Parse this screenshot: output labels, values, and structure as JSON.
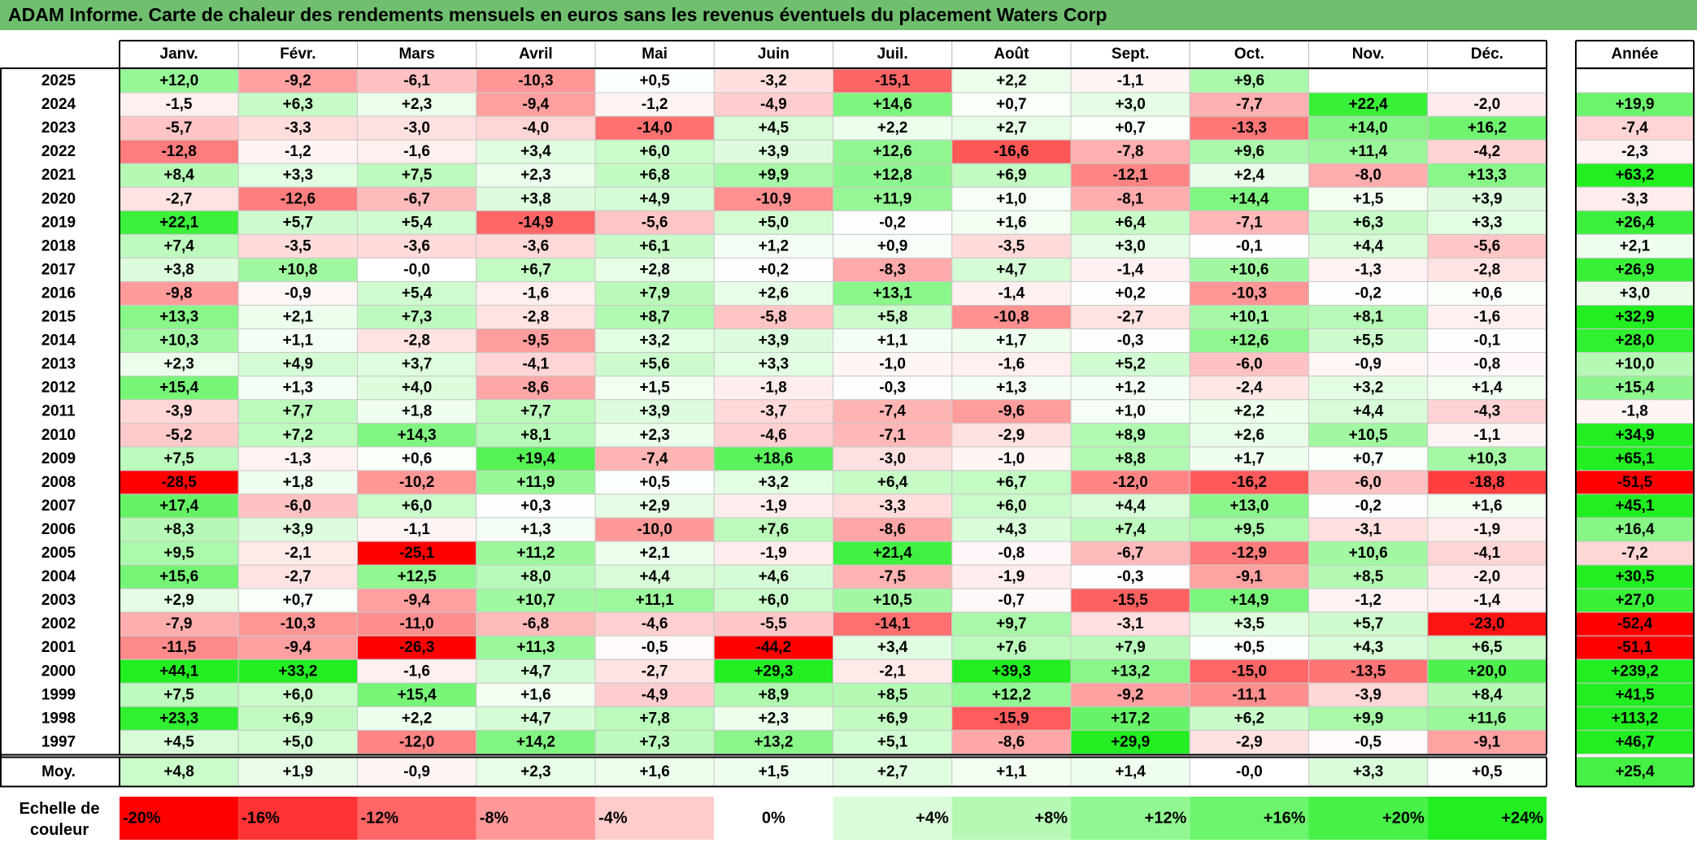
{
  "title": "ADAM Informe. Carte de chaleur des rendements mensuels en euros sans les revenus éventuels du placement Waters Corp",
  "chart_data": {
    "type": "heatmap",
    "months": [
      "Janv.",
      "Févr.",
      "Mars",
      "Avril",
      "Mai",
      "Juin",
      "Juil.",
      "Août",
      "Sept.",
      "Oct.",
      "Nov.",
      "Déc."
    ],
    "year_header": "Année",
    "rows": [
      {
        "year": "2025",
        "values": [
          12.0,
          -9.2,
          -6.1,
          -10.3,
          0.5,
          -3.2,
          -15.1,
          2.2,
          -1.1,
          9.6,
          null,
          null
        ],
        "annual": null
      },
      {
        "year": "2024",
        "values": [
          -1.5,
          6.3,
          2.3,
          -9.4,
          -1.2,
          -4.9,
          14.6,
          0.7,
          3.0,
          -7.7,
          22.4,
          -2.0
        ],
        "annual": 19.9
      },
      {
        "year": "2023",
        "values": [
          -5.7,
          -3.3,
          -3.0,
          -4.0,
          -14.0,
          4.5,
          2.2,
          2.7,
          0.7,
          -13.3,
          14.0,
          16.2
        ],
        "annual": -7.4
      },
      {
        "year": "2022",
        "values": [
          -12.8,
          -1.2,
          -1.6,
          3.4,
          6.0,
          3.9,
          12.6,
          -16.6,
          -7.8,
          9.6,
          11.4,
          -4.2
        ],
        "annual": -2.3
      },
      {
        "year": "2021",
        "values": [
          8.4,
          3.3,
          7.5,
          2.3,
          6.8,
          9.9,
          12.8,
          6.9,
          -12.1,
          2.4,
          -8.0,
          13.3
        ],
        "annual": 63.2
      },
      {
        "year": "2020",
        "values": [
          -2.7,
          -12.6,
          -6.7,
          3.8,
          4.9,
          -10.9,
          11.9,
          1.0,
          -8.1,
          14.4,
          1.5,
          3.9
        ],
        "annual": -3.3
      },
      {
        "year": "2019",
        "values": [
          22.1,
          5.7,
          5.4,
          -14.9,
          -5.6,
          5.0,
          -0.2,
          1.6,
          6.4,
          -7.1,
          6.3,
          3.3
        ],
        "annual": 26.4
      },
      {
        "year": "2018",
        "values": [
          7.4,
          -3.5,
          -3.6,
          -3.6,
          6.1,
          1.2,
          0.9,
          -3.5,
          3.0,
          -0.1,
          4.4,
          -5.6
        ],
        "annual": 2.1
      },
      {
        "year": "2017",
        "values": [
          3.8,
          10.8,
          -0.0,
          6.7,
          2.8,
          0.2,
          -8.3,
          4.7,
          -1.4,
          10.6,
          -1.3,
          -2.8
        ],
        "annual": 26.9
      },
      {
        "year": "2016",
        "values": [
          -9.8,
          -0.9,
          5.4,
          -1.6,
          7.9,
          2.6,
          13.1,
          -1.4,
          0.2,
          -10.3,
          -0.2,
          0.6
        ],
        "annual": 3.0
      },
      {
        "year": "2015",
        "values": [
          13.3,
          2.1,
          7.3,
          -2.8,
          8.7,
          -5.8,
          5.8,
          -10.8,
          -2.7,
          10.1,
          8.1,
          -1.6
        ],
        "annual": 32.9
      },
      {
        "year": "2014",
        "values": [
          10.3,
          1.1,
          -2.8,
          -9.5,
          3.2,
          3.9,
          1.1,
          1.7,
          -0.3,
          12.6,
          5.5,
          -0.1
        ],
        "annual": 28.0
      },
      {
        "year": "2013",
        "values": [
          2.3,
          4.9,
          3.7,
          -4.1,
          5.6,
          3.3,
          -1.0,
          -1.6,
          5.2,
          -6.0,
          -0.9,
          -0.8
        ],
        "annual": 10.0
      },
      {
        "year": "2012",
        "values": [
          15.4,
          1.3,
          4.0,
          -8.6,
          1.5,
          -1.8,
          -0.3,
          1.3,
          1.2,
          -2.4,
          3.2,
          1.4
        ],
        "annual": 15.4
      },
      {
        "year": "2011",
        "values": [
          -3.9,
          7.7,
          1.8,
          7.7,
          3.9,
          -3.7,
          -7.4,
          -9.6,
          1.0,
          2.2,
          4.4,
          -4.3
        ],
        "annual": -1.8
      },
      {
        "year": "2010",
        "values": [
          -5.2,
          7.2,
          14.3,
          8.1,
          2.3,
          -4.6,
          -7.1,
          -2.9,
          8.9,
          2.6,
          10.5,
          -1.1
        ],
        "annual": 34.9
      },
      {
        "year": "2009",
        "values": [
          7.5,
          -1.3,
          0.6,
          19.4,
          -7.4,
          18.6,
          -3.0,
          -1.0,
          8.8,
          1.7,
          0.7,
          10.3
        ],
        "annual": 65.1
      },
      {
        "year": "2008",
        "values": [
          -28.5,
          1.8,
          -10.2,
          11.9,
          0.5,
          3.2,
          6.4,
          6.7,
          -12.0,
          -16.2,
          -6.0,
          -18.8
        ],
        "annual": -51.5
      },
      {
        "year": "2007",
        "values": [
          17.4,
          -6.0,
          6.0,
          0.3,
          2.9,
          -1.9,
          -3.3,
          6.0,
          4.4,
          13.0,
          -0.2,
          1.6
        ],
        "annual": 45.1
      },
      {
        "year": "2006",
        "values": [
          8.3,
          3.9,
          -1.1,
          1.3,
          -10.0,
          7.6,
          -8.6,
          4.3,
          7.4,
          9.5,
          -3.1,
          -1.9
        ],
        "annual": 16.4
      },
      {
        "year": "2005",
        "values": [
          9.5,
          -2.1,
          -25.1,
          11.2,
          2.1,
          -1.9,
          21.4,
          -0.8,
          -6.7,
          -12.9,
          10.6,
          -4.1
        ],
        "annual": -7.2
      },
      {
        "year": "2004",
        "values": [
          15.6,
          -2.7,
          12.5,
          8.0,
          4.4,
          4.6,
          -7.5,
          -1.9,
          -0.3,
          -9.1,
          8.5,
          -2.0
        ],
        "annual": 30.5
      },
      {
        "year": "2003",
        "values": [
          2.9,
          0.7,
          -9.4,
          10.7,
          11.1,
          6.0,
          10.5,
          -0.7,
          -15.5,
          14.9,
          -1.2,
          -1.4
        ],
        "annual": 27.0
      },
      {
        "year": "2002",
        "values": [
          -7.9,
          -10.3,
          -11.0,
          -6.8,
          -4.6,
          -5.5,
          -14.1,
          9.7,
          -3.1,
          3.5,
          5.7,
          -23.0
        ],
        "annual": -52.4
      },
      {
        "year": "2001",
        "values": [
          -11.5,
          -9.4,
          -26.3,
          11.3,
          -0.5,
          -44.2,
          3.4,
          7.6,
          7.9,
          0.5,
          4.3,
          6.5
        ],
        "annual": -51.1
      },
      {
        "year": "2000",
        "values": [
          44.1,
          33.2,
          -1.6,
          4.7,
          -2.7,
          29.3,
          -2.1,
          39.3,
          13.2,
          -15.0,
          -13.5,
          20.0
        ],
        "annual": 239.2
      },
      {
        "year": "1999",
        "values": [
          7.5,
          6.0,
          15.4,
          1.6,
          -4.9,
          8.9,
          8.5,
          12.2,
          -9.2,
          -11.1,
          -3.9,
          8.4
        ],
        "annual": 41.5
      },
      {
        "year": "1998",
        "values": [
          23.3,
          6.9,
          2.2,
          4.7,
          7.8,
          2.3,
          6.9,
          -15.9,
          17.2,
          6.2,
          9.9,
          11.6
        ],
        "annual": 113.2
      },
      {
        "year": "1997",
        "values": [
          4.5,
          5.0,
          -12.0,
          14.2,
          7.3,
          13.2,
          5.1,
          -8.6,
          29.9,
          -2.9,
          -0.5,
          -9.1
        ],
        "annual": 46.7
      }
    ],
    "average": {
      "label": "Moy.",
      "values": [
        4.8,
        1.9,
        -0.9,
        2.3,
        1.6,
        1.5,
        2.7,
        1.1,
        1.4,
        -0.0,
        3.3,
        0.5
      ],
      "annual": 25.4
    },
    "scale": {
      "label_line1": "Echelle de",
      "label_line2": "couleur",
      "steps": [
        {
          "label": "-20%",
          "value": -20
        },
        {
          "label": "-16%",
          "value": -16
        },
        {
          "label": "-12%",
          "value": -12
        },
        {
          "label": "-8%",
          "value": -8
        },
        {
          "label": "-4%",
          "value": -4
        },
        {
          "label": "0%",
          "value": 0
        },
        {
          "label": "+4%",
          "value": 4
        },
        {
          "label": "+8%",
          "value": 8
        },
        {
          "label": "+12%",
          "value": 12
        },
        {
          "label": "+16%",
          "value": 16
        },
        {
          "label": "+20%",
          "value": 20
        },
        {
          "label": "+24%",
          "value": 24
        }
      ]
    },
    "colors": {
      "negative_max": "#ff0000",
      "neutral": "#ffffff",
      "positive_max": "#22ee22",
      "title_bg": "#6fbf6f"
    }
  }
}
